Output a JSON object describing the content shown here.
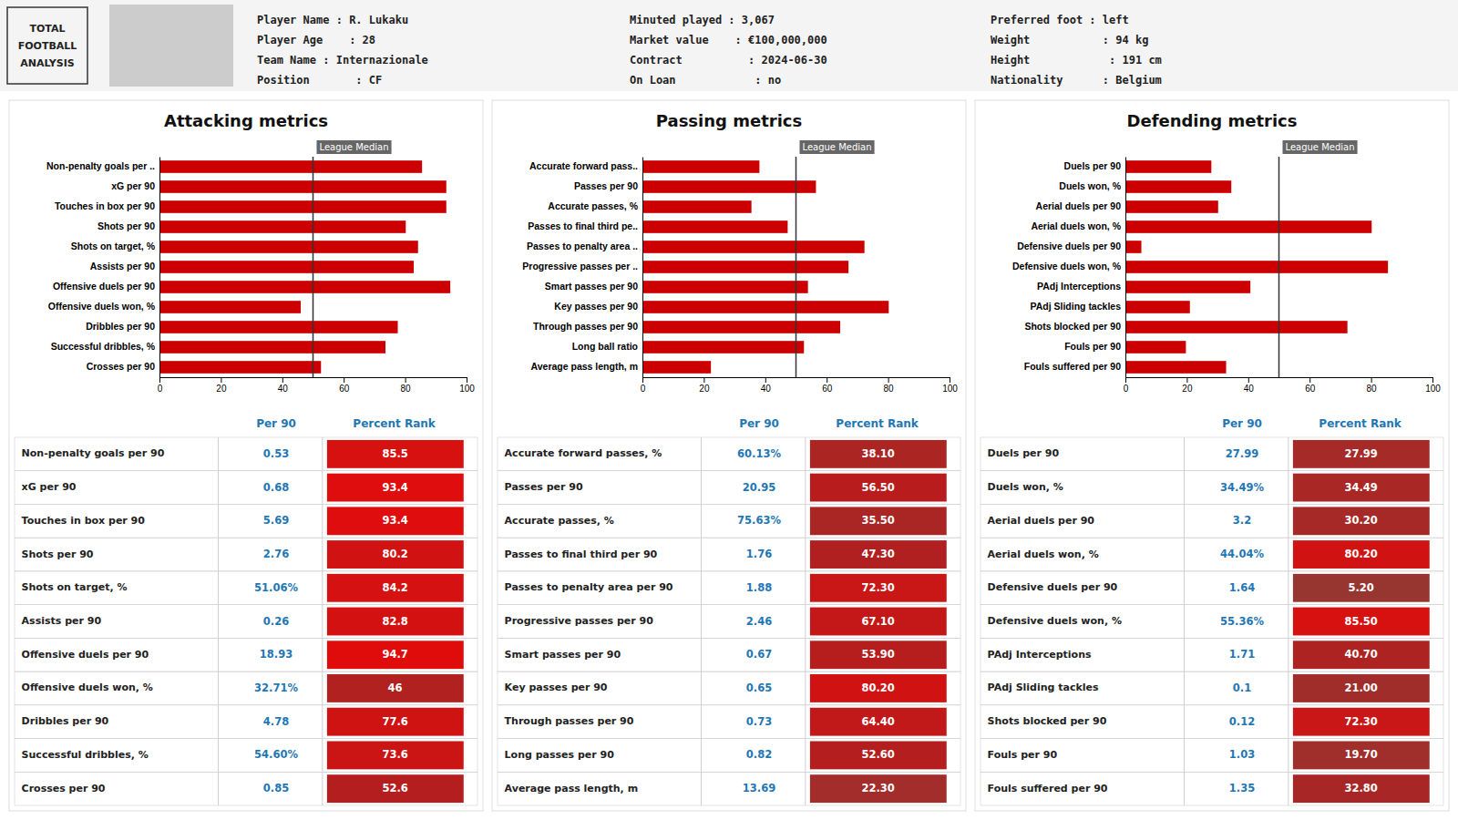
{
  "header": {
    "logo": [
      "TOTAL",
      "FOOTBALL",
      "ANALYSIS"
    ],
    "info": [
      [
        "Player Name : R. Lukaku",
        "Player Age    : 28",
        "Team Name : Internazionale",
        "Position       : CF"
      ],
      [
        "Minuted played : 3,067",
        "Market value    : €100,000,000",
        "Contract          : 2024-06-30",
        "On Loan            : no"
      ],
      [
        "Preferred foot : left",
        "Weight           : 94 kg",
        "Height            : 191 cm",
        "Nationality      : Belgium"
      ]
    ]
  },
  "chart_data": [
    {
      "type": "bar",
      "orientation": "horizontal",
      "title": "Attacking metrics",
      "categories": [
        "Non-penalty goals per ..",
        "xG per 90",
        "Touches in box per 90",
        "Shots per 90",
        "Shots on target, %",
        "Assists per 90",
        "Offensive duels per 90",
        "Offensive duels won, %",
        "Dribbles per 90",
        "Successful dribbles, %",
        "Crosses per 90"
      ],
      "values": [
        85.5,
        93.4,
        93.4,
        80.2,
        84.2,
        82.8,
        94.7,
        46.0,
        77.6,
        73.6,
        52.6
      ],
      "color": "#cc0000",
      "xlim": [
        0,
        100
      ],
      "xticks": [
        0,
        20,
        40,
        60,
        80,
        100
      ],
      "grid": false,
      "annotations": [
        {
          "text": "League Median",
          "x": 50
        }
      ],
      "table": {
        "columns": [
          "Per 90",
          "Percent Rank"
        ],
        "rows": [
          "Non-penalty goals per 90",
          "xG per 90",
          "Touches in box per 90",
          "Shots per 90",
          "Shots on target, %",
          "Assists per 90",
          "Offensive duels per 90",
          "Offensive duels won, %",
          "Dribbles per 90",
          "Successful dribbles, %",
          "Crosses per 90"
        ],
        "per90": [
          "0.53",
          "0.68",
          "5.69",
          "2.76",
          "51.06%",
          "0.26",
          "18.93",
          "32.71%",
          "4.78",
          "54.60%",
          "0.85"
        ],
        "pct_rank": [
          85.5,
          93.4,
          93.4,
          80.2,
          84.2,
          82.8,
          94.7,
          46.0,
          77.6,
          73.6,
          52.6
        ],
        "pct_display": [
          "85.5",
          "93.4",
          "93.4",
          "80.2",
          "84.2",
          "82.8",
          "94.7",
          "46",
          "77.6",
          "73.6",
          "52.6"
        ]
      }
    },
    {
      "type": "bar",
      "orientation": "horizontal",
      "title": "Passing metrics",
      "categories": [
        "Accurate forward pass..",
        "Passes per 90",
        "Accurate passes, %",
        "Passes to final third pe..",
        "Passes to penalty area ..",
        "Progressive passes per ..",
        "Smart passes per 90",
        "Key passes per 90",
        "Through passes per 90",
        "Long ball ratio",
        "Average pass length, m"
      ],
      "values": [
        38.1,
        56.5,
        35.5,
        47.3,
        72.3,
        67.1,
        53.9,
        80.2,
        64.4,
        52.6,
        22.3
      ],
      "color": "#cc0000",
      "xlim": [
        0,
        100
      ],
      "xticks": [
        0,
        20,
        40,
        60,
        80,
        100
      ],
      "grid": false,
      "annotations": [
        {
          "text": "League Median",
          "x": 50
        }
      ],
      "table": {
        "columns": [
          "Per 90",
          "Percent Rank"
        ],
        "rows": [
          "Accurate forward passes, %",
          "Passes per 90",
          "Accurate passes, %",
          "Passes to final third per 90",
          "Passes to penalty area per 90",
          "Progressive passes per 90",
          "Smart passes per 90",
          "Key passes per 90",
          "Through passes per 90",
          "Long passes per 90",
          "Average pass length, m"
        ],
        "per90": [
          "60.13%",
          "20.95",
          "75.63%",
          "1.76",
          "1.88",
          "2.46",
          "0.67",
          "0.65",
          "0.73",
          "0.82",
          "13.69"
        ],
        "pct_rank": [
          38.1,
          56.5,
          35.5,
          47.3,
          72.3,
          67.1,
          53.9,
          80.2,
          64.4,
          52.6,
          22.3
        ],
        "pct_display": [
          "38.10",
          "56.50",
          "35.50",
          "47.30",
          "72.30",
          "67.10",
          "53.90",
          "80.20",
          "64.40",
          "52.60",
          "22.30"
        ]
      }
    },
    {
      "type": "bar",
      "orientation": "horizontal",
      "title": "Defending metrics",
      "categories": [
        "Duels per 90",
        "Duels won, %",
        "Aerial duels per 90",
        "Aerial duels won, %",
        "Defensive duels per 90",
        "Defensive duels won, %",
        "PAdj Interceptions",
        "PAdj Sliding tackles",
        "Shots blocked per 90",
        "Fouls per 90",
        "Fouls suffered per 90"
      ],
      "values": [
        27.99,
        34.49,
        30.2,
        80.2,
        5.2,
        85.5,
        40.7,
        21.0,
        72.3,
        19.7,
        32.8
      ],
      "color": "#cc0000",
      "xlim": [
        0,
        100
      ],
      "xticks": [
        0,
        20,
        40,
        60,
        80,
        100
      ],
      "grid": false,
      "annotations": [
        {
          "text": "League Median",
          "x": 50
        }
      ],
      "table": {
        "columns": [
          "Per 90",
          "Percent Rank"
        ],
        "rows": [
          "Duels per 90",
          "Duels won, %",
          "Aerial duels per 90",
          "Aerial duels won, %",
          "Defensive duels per 90",
          "Defensive duels won, %",
          "PAdj Interceptions",
          "PAdj Sliding tackles",
          "Shots blocked per 90",
          "Fouls per 90",
          "Fouls suffered per 90"
        ],
        "per90": [
          "27.99",
          "34.49%",
          "3.2",
          "44.04%",
          "1.64",
          "55.36%",
          "1.71",
          "0.1",
          "0.12",
          "1.03",
          "1.35"
        ],
        "pct_rank": [
          27.99,
          34.49,
          30.2,
          80.2,
          5.2,
          85.5,
          40.7,
          21.0,
          72.3,
          19.7,
          32.8
        ],
        "pct_display": [
          "27.99",
          "34.49",
          "30.20",
          "80.20",
          "5.20",
          "85.50",
          "40.70",
          "21.00",
          "72.30",
          "19.70",
          "32.80"
        ]
      }
    }
  ]
}
